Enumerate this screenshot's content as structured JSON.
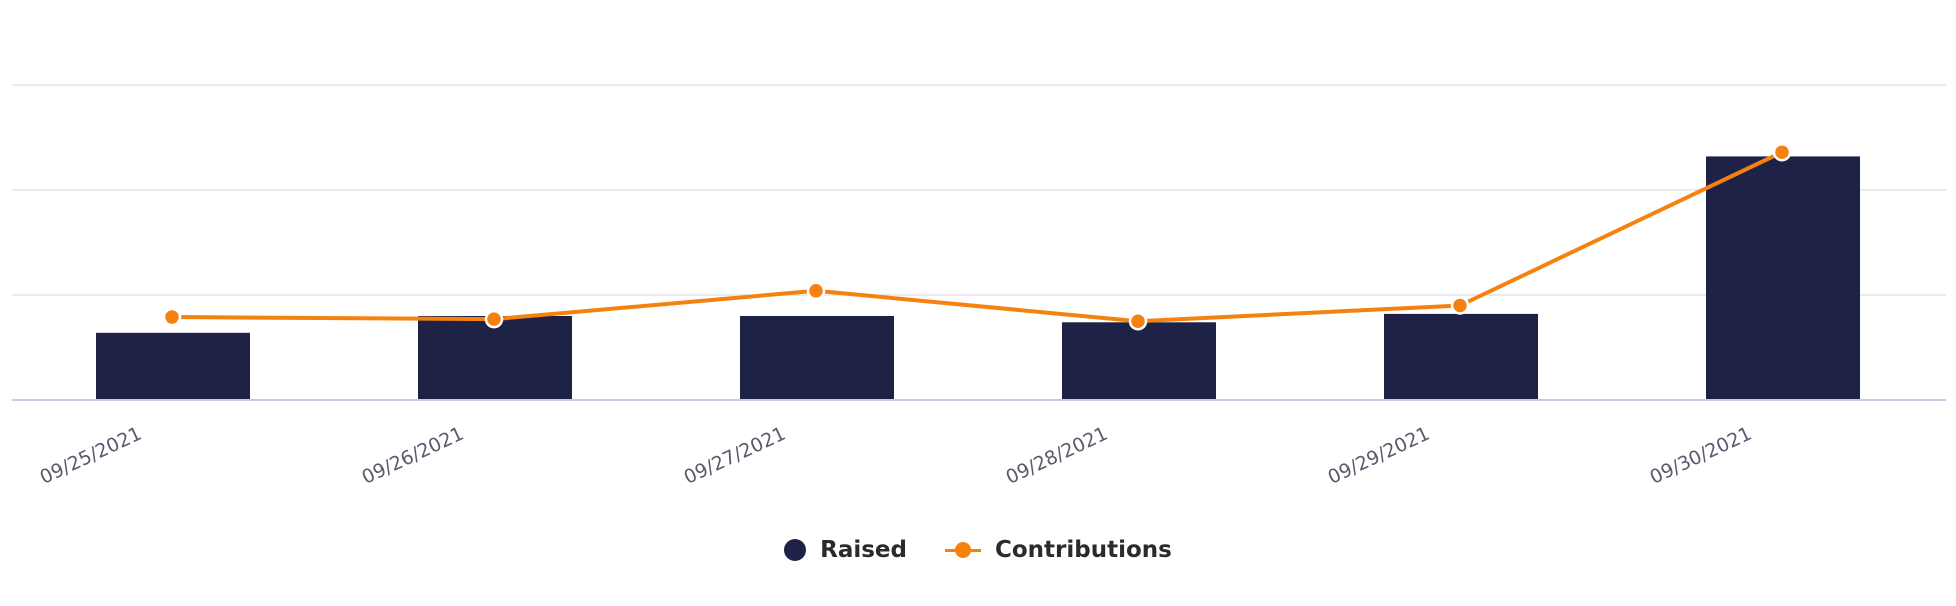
{
  "chart_data": {
    "type": "bar",
    "categories": [
      "09/25/2021",
      "09/26/2021",
      "09/27/2021",
      "09/28/2021",
      "09/29/2021",
      "09/30/2021"
    ],
    "series": [
      {
        "name": "Raised",
        "type": "bar",
        "color": "#1e2246",
        "values": [
          0.64,
          0.8,
          0.8,
          0.74,
          0.82,
          2.32
        ]
      },
      {
        "name": "Contributions",
        "type": "line",
        "color": "#f5820f",
        "values": [
          0.79,
          0.77,
          1.04,
          0.75,
          0.9,
          2.36
        ]
      }
    ],
    "ylim": [
      0,
      3
    ],
    "grid": true,
    "legend_position": "bottom-center"
  }
}
